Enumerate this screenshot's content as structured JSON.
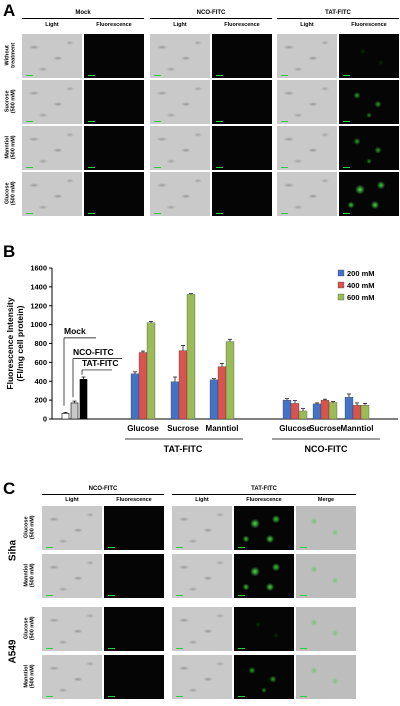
{
  "panel_a": {
    "letter": "A",
    "groups": [
      {
        "title": "Mock",
        "cols": [
          "Light",
          "Fluorescence"
        ]
      },
      {
        "title": "NCO-FITC",
        "cols": [
          "Light",
          "Fluorescence"
        ]
      },
      {
        "title": "TAT-FITC",
        "cols": [
          "Light",
          "Fluorescence"
        ]
      }
    ],
    "rows": [
      {
        "label": "Without\ntreatment",
        "tat_level": "faint"
      },
      {
        "label": "Sucrose\n(500 mM)",
        "tat_level": "medium"
      },
      {
        "label": "Manntiol\n(500 mM)",
        "tat_level": "medium"
      },
      {
        "label": "Glucose\n(500 mM)",
        "tat_level": "bright"
      }
    ]
  },
  "panel_b": {
    "letter": "B",
    "annotations": {
      "mock": "Mock",
      "nco": "NCO-FITC",
      "tat": "TAT-FITC"
    },
    "group_labels": [
      "TAT-FITC",
      "NCO-FITC"
    ]
  },
  "chart_data": {
    "type": "bar",
    "title": "",
    "xlabel": "",
    "ylabel": "Fluorescence Intensity\n(FI/mg cell protein)",
    "ylim": [
      0,
      1600
    ],
    "yticks": [
      0,
      200,
      400,
      600,
      800,
      1000,
      1200,
      1400,
      1600
    ],
    "legend_position": "top-right",
    "controls": {
      "categories": [
        "Mock",
        "NCO-FITC",
        "TAT-FITC"
      ],
      "values": [
        60,
        170,
        420
      ],
      "errors": [
        10,
        20,
        25
      ],
      "colors": [
        "#ffffff",
        "#c8c8c8",
        "#000000"
      ]
    },
    "categories": [
      "Glucose",
      "Sucrose",
      "Manntiol",
      "Glucose",
      "Sucrose",
      "Manntiol"
    ],
    "series": [
      {
        "name": "200 mM",
        "color": "#4472c4",
        "values": [
          480,
          395,
          415,
          200,
          160,
          230
        ],
        "errors": [
          20,
          50,
          12,
          15,
          10,
          35
        ]
      },
      {
        "name": "400 mM",
        "color": "#d9534f",
        "values": [
          705,
          725,
          555,
          165,
          200,
          145
        ],
        "errors": [
          15,
          55,
          35,
          30,
          10,
          25
        ]
      },
      {
        "name": "600 mM",
        "color": "#9bbb59",
        "values": [
          1020,
          1320,
          820,
          85,
          175,
          145
        ],
        "errors": [
          15,
          8,
          25,
          25,
          10,
          20
        ]
      }
    ]
  },
  "panel_c": {
    "letter": "C",
    "nco_title": "NCO-FITC",
    "tat_title": "TAT-FITC",
    "nco_cols": [
      "Light",
      "Fluorescence"
    ],
    "tat_cols": [
      "Light",
      "Fluorescence",
      "Merge"
    ],
    "blocks": [
      {
        "cell_line": "Siha",
        "rows": [
          {
            "label": "Glucose\n(500 mM)",
            "intensity": "bright"
          },
          {
            "label": "Manntiol\n(500 mM)",
            "intensity": "bright"
          }
        ]
      },
      {
        "cell_line": "A549",
        "rows": [
          {
            "label": "Glucose\n(500 mM)",
            "intensity": "faint"
          },
          {
            "label": "Manntiol\n(500 mM)",
            "intensity": "medium"
          }
        ]
      }
    ]
  }
}
